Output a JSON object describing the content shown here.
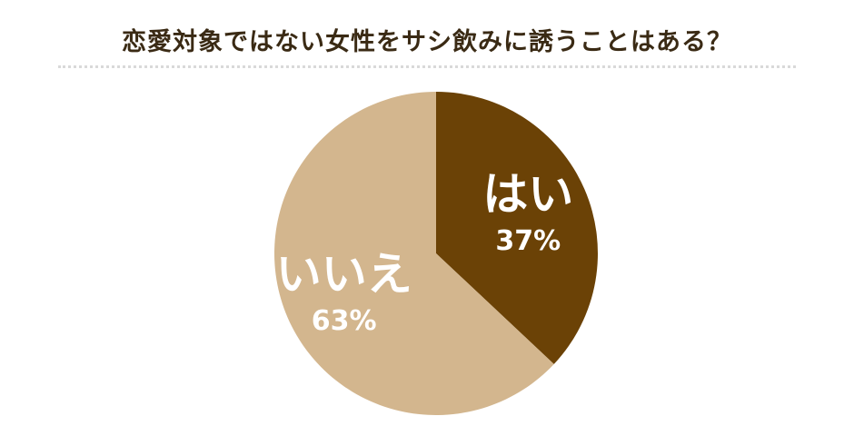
{
  "title": "恋愛対象ではない女性をサシ飲みに誘うことはある？",
  "chart_data": {
    "type": "pie",
    "title": "恋愛対象ではない女性をサシ飲みに誘うことはある？",
    "slices": [
      {
        "label": "はい",
        "value": 37,
        "value_label": "37%",
        "color": "#6b4206"
      },
      {
        "label": "いいえ",
        "value": 63,
        "value_label": "63%",
        "color": "#d3b68e"
      }
    ],
    "start": "12 o'clock",
    "direction": "clockwise",
    "legend": "none"
  }
}
